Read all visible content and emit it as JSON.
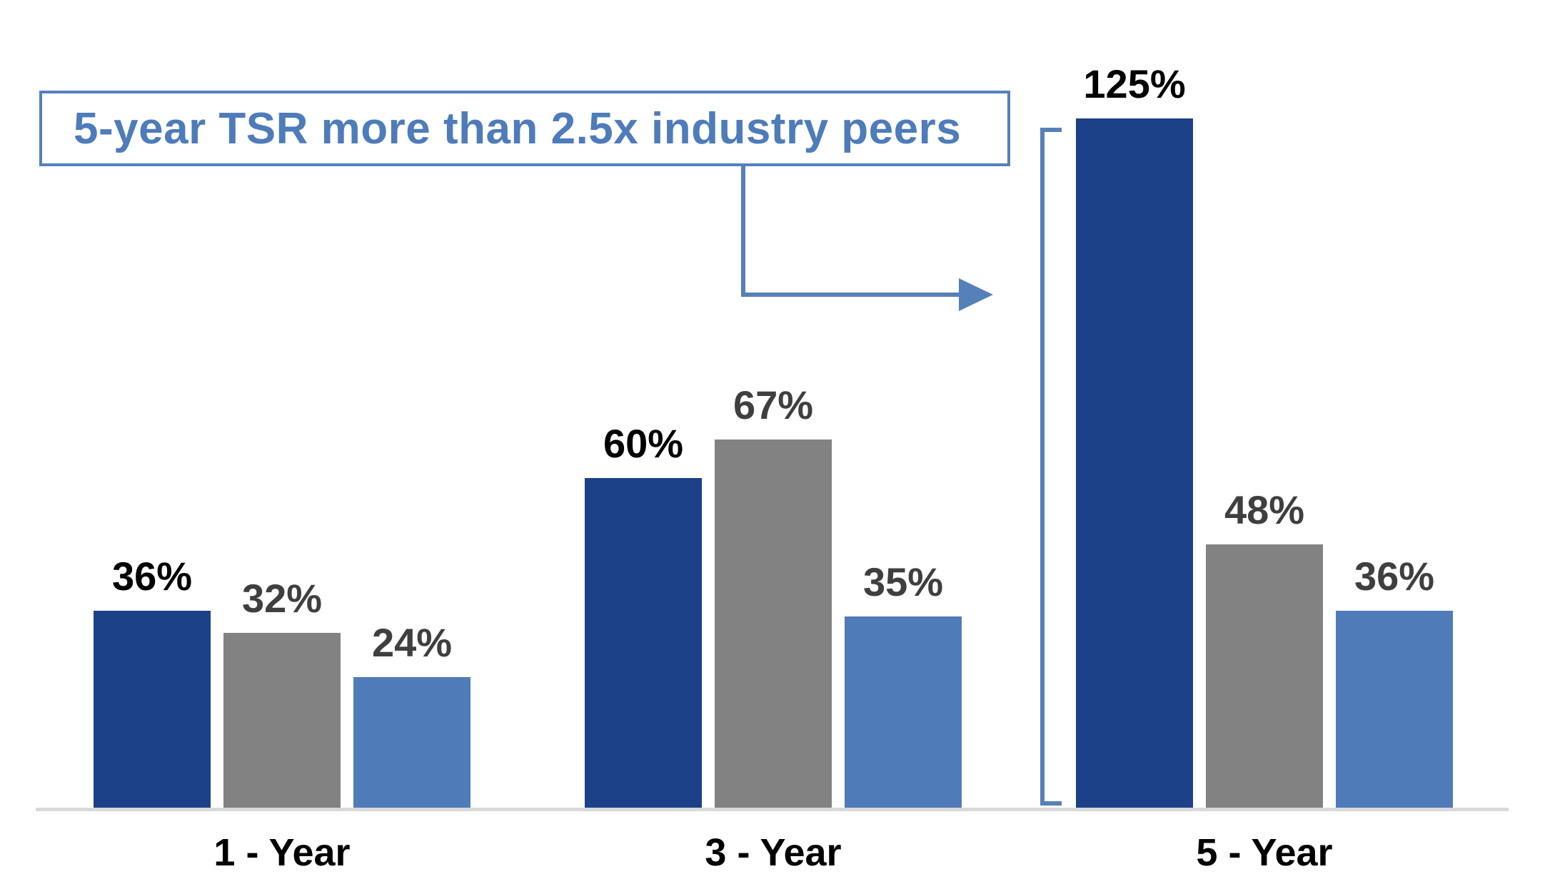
{
  "callout": {
    "text": "5-year TSR more than 2.5x industry peers",
    "text_color": "#4E7CBA",
    "border_color": "#5580BA"
  },
  "chart_data": {
    "type": "bar",
    "title": "",
    "xlabel": "",
    "ylabel": "",
    "categories": [
      "1 - Year",
      "3 - Year",
      "5 - Year"
    ],
    "series": [
      {
        "name": "series-1-dark-blue",
        "color": "#1C4189",
        "values": [
          36,
          60,
          125
        ],
        "value_labels": [
          "36%",
          "60%",
          "125%"
        ],
        "label_color": "#000000"
      },
      {
        "name": "series-2-gray",
        "color": "#828282",
        "values": [
          32,
          67,
          48
        ],
        "value_labels": [
          "32%",
          "67%",
          "48%"
        ],
        "label_color": "#3F3F3F"
      },
      {
        "name": "series-3-light-blue",
        "color": "#4F7CB9",
        "values": [
          24,
          35,
          36
        ],
        "value_labels": [
          "24%",
          "35%",
          "36%"
        ],
        "label_color": "#3F3F3F"
      }
    ],
    "ylim": [
      0,
      130
    ],
    "grid": false,
    "legend": "none",
    "baseline_color": "#D9D9D9",
    "annotation": {
      "callout_text": "5-year TSR more than 2.5x industry peers",
      "arrow_target_group": "5 - Year",
      "bracket_highlight_value": "125%"
    }
  }
}
